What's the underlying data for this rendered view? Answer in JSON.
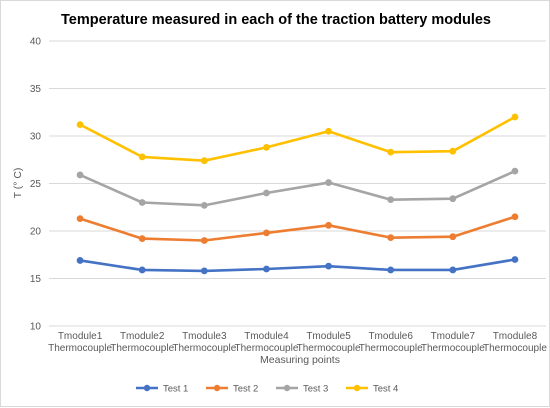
{
  "chart_data": {
    "type": "line",
    "title": "Temperature measured in each of the traction battery modules",
    "xlabel": "Measuring points",
    "ylabel": "T (° C)",
    "ylim": [
      10,
      40
    ],
    "yticks": [
      10,
      15,
      20,
      25,
      30,
      35,
      40
    ],
    "grid": true,
    "legend_position": "bottom",
    "categories": [
      [
        "Tmodule1",
        "Thermocouple"
      ],
      [
        "Tmodule2",
        "Thermocouple"
      ],
      [
        "Tmodule3",
        "Thermocouple"
      ],
      [
        "Tmodule4",
        "Thermocouple"
      ],
      [
        "Tmodule5",
        "Thermocouple"
      ],
      [
        "Tmodule6",
        "Thermocouple"
      ],
      [
        "Tmodule7",
        "Thermocouple"
      ],
      [
        "Tmodule8",
        "Thermocouple"
      ]
    ],
    "series": [
      {
        "name": "Test 1",
        "color": "#4472c4",
        "values": [
          16.9,
          15.9,
          15.8,
          16.0,
          16.3,
          15.9,
          15.9,
          17.0
        ]
      },
      {
        "name": "Test 2",
        "color": "#ed7d31",
        "values": [
          21.3,
          19.2,
          19.0,
          19.8,
          20.6,
          19.3,
          19.4,
          21.5
        ]
      },
      {
        "name": "Test 3",
        "color": "#a5a5a5",
        "values": [
          25.9,
          23.0,
          22.7,
          24.0,
          25.1,
          23.3,
          23.4,
          26.3
        ]
      },
      {
        "name": "Test 4",
        "color": "#ffc000",
        "values": [
          31.2,
          27.8,
          27.4,
          28.8,
          30.5,
          28.3,
          28.4,
          32.0
        ]
      }
    ]
  }
}
